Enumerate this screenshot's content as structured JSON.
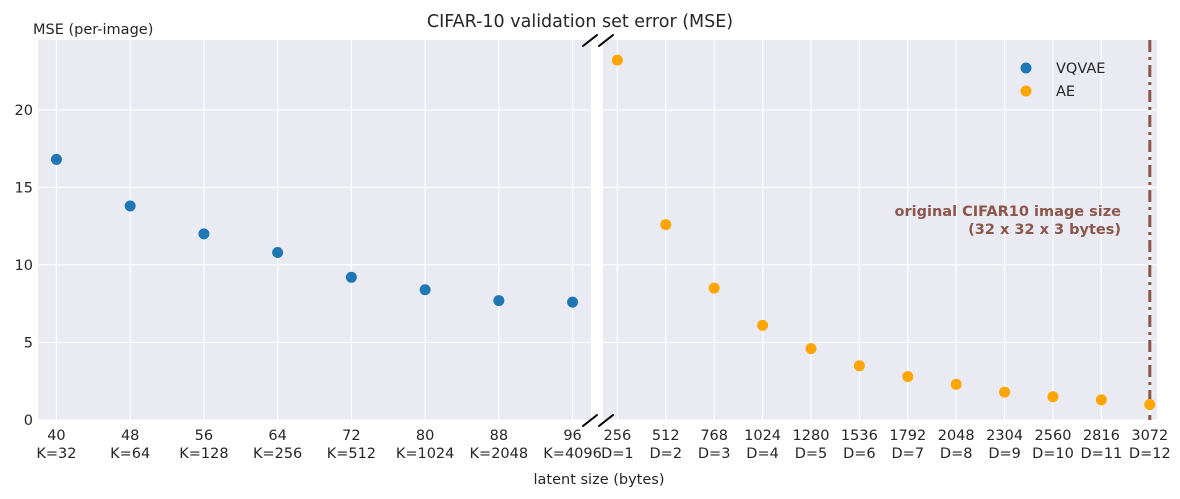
{
  "chart_data": {
    "type": "scatter",
    "title": "CIFAR-10 validation set error (MSE)",
    "ylabel": "MSE (per-image)",
    "xlabel": "latent size (bytes)",
    "ylim": [
      0,
      24.5
    ],
    "y_ticks": [
      0,
      5,
      10,
      15,
      20
    ],
    "grid": true,
    "legend_position": "top-right",
    "panels": [
      {
        "name": "left",
        "xlim": [
          38,
          98
        ],
        "tick_labels": [
          {
            "x": 40,
            "line1": "40",
            "line2": "K=32"
          },
          {
            "x": 48,
            "line1": "48",
            "line2": "K=64"
          },
          {
            "x": 56,
            "line1": "56",
            "line2": "K=128"
          },
          {
            "x": 64,
            "line1": "64",
            "line2": "K=256"
          },
          {
            "x": 72,
            "line1": "72",
            "line2": "K=512"
          },
          {
            "x": 80,
            "line1": "80",
            "line2": "K=1024"
          },
          {
            "x": 88,
            "line1": "88",
            "line2": "K=2048"
          },
          {
            "x": 96,
            "line1": "96",
            "line2": "K=4096"
          }
        ]
      },
      {
        "name": "right",
        "xlim": [
          180,
          3110
        ],
        "tick_labels": [
          {
            "x": 256,
            "line1": "256",
            "line2": "D=1"
          },
          {
            "x": 512,
            "line1": "512",
            "line2": "D=2"
          },
          {
            "x": 768,
            "line1": "768",
            "line2": "D=3"
          },
          {
            "x": 1024,
            "line1": "1024",
            "line2": "D=4"
          },
          {
            "x": 1280,
            "line1": "1280",
            "line2": "D=5"
          },
          {
            "x": 1536,
            "line1": "1536",
            "line2": "D=6"
          },
          {
            "x": 1792,
            "line1": "1792",
            "line2": "D=7"
          },
          {
            "x": 2048,
            "line1": "2048",
            "line2": "D=8"
          },
          {
            "x": 2304,
            "line1": "2304",
            "line2": "D=9"
          },
          {
            "x": 2560,
            "line1": "2560",
            "line2": "D=10"
          },
          {
            "x": 2816,
            "line1": "2816",
            "line2": "D=11"
          },
          {
            "x": 3072,
            "line1": "3072",
            "line2": "D=12"
          }
        ]
      }
    ],
    "series": [
      {
        "name": "VQVAE",
        "color": "#1f77b4",
        "panel": "left",
        "x": [
          40,
          48,
          56,
          64,
          72,
          80,
          88,
          96
        ],
        "y": [
          16.8,
          13.8,
          12.0,
          10.8,
          9.2,
          8.4,
          7.7,
          7.6
        ]
      },
      {
        "name": "AE",
        "color": "#ffa500",
        "panel": "right",
        "x": [
          256,
          512,
          768,
          1024,
          1280,
          1536,
          1792,
          2048,
          2304,
          2560,
          2816,
          3072
        ],
        "y": [
          23.2,
          12.6,
          8.5,
          6.1,
          4.6,
          3.5,
          2.8,
          2.3,
          1.8,
          1.5,
          1.3,
          1.0
        ]
      }
    ],
    "reference_line": {
      "x": 3072,
      "panel": "right",
      "color": "#8c564b",
      "style": "dash-dot",
      "label_line1": "original CIFAR10 image size",
      "label_line2": "(32 x 32 x 3 bytes)"
    }
  }
}
